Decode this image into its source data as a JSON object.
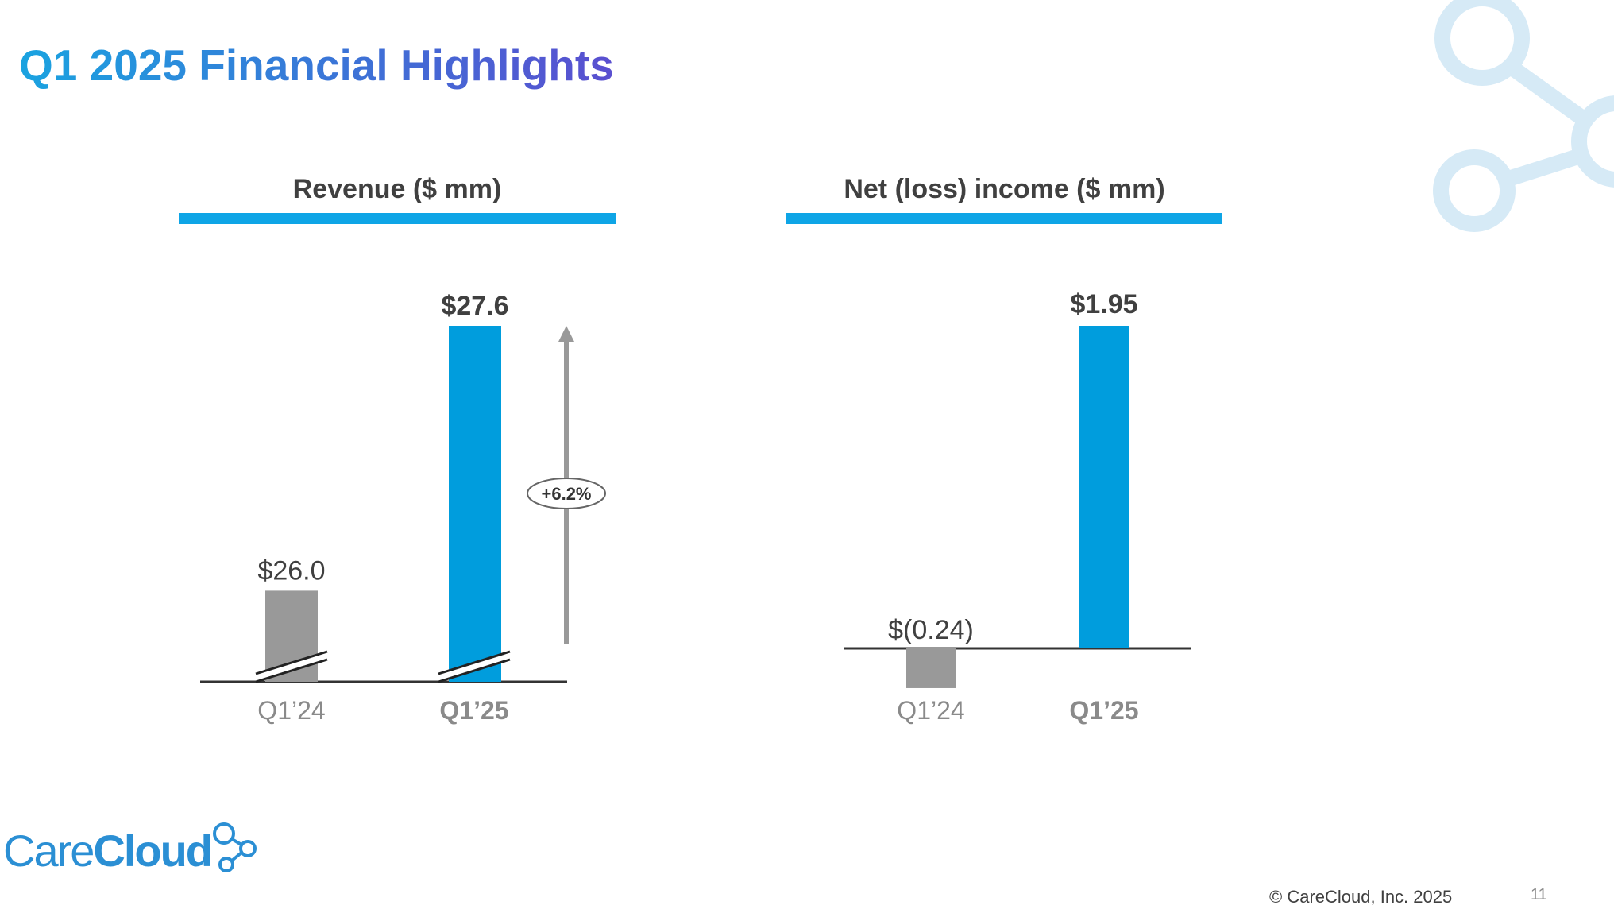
{
  "slide": {
    "title": "Q1 2025 Financial Highlights",
    "logo": {
      "part1": "Care",
      "part2": "Cloud"
    },
    "copyright": "© CareCloud, Inc. 2025",
    "page_number": "11"
  },
  "colors": {
    "accent": "#0ea5e6",
    "bar_current": "#009ddd",
    "bar_prior": "#999999",
    "text_dark": "#404040",
    "text_gray": "#8a8a8a",
    "decor": "#d6eaf6"
  },
  "chart_data": [
    {
      "type": "bar",
      "title": "Revenue ($ mm)",
      "categories": [
        "Q1’24",
        "Q1’25"
      ],
      "values": [
        26.0,
        27.6
      ],
      "labels": [
        "$26.0",
        "$27.6"
      ],
      "axis_break": true,
      "growth_annotation": "+6.2%",
      "grid": false
    },
    {
      "type": "bar",
      "title": "Net (loss) income ($ mm)",
      "categories": [
        "Q1’24",
        "Q1’25"
      ],
      "values": [
        -0.24,
        1.95
      ],
      "labels": [
        "$(0.24)",
        "$1.95"
      ],
      "grid": false
    }
  ]
}
